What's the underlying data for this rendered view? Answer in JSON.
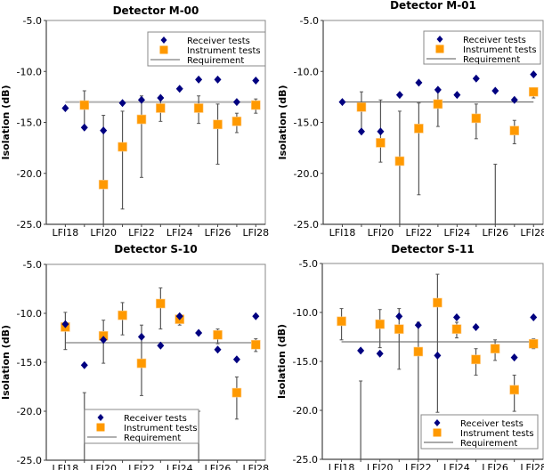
{
  "chart_data": [
    {
      "type": "scatter",
      "title": "Detector M-00",
      "xlabel": "",
      "ylabel": "Isolation (dB)",
      "ylim": [
        -25,
        -5
      ],
      "yticks": [
        "-5.0",
        "-10.0",
        "-15.0",
        "-20.0",
        "-25.0"
      ],
      "ytick_values": [
        -5,
        -10,
        -15,
        -20,
        -25
      ],
      "x": [
        18,
        19,
        20,
        21,
        22,
        23,
        24,
        25,
        26,
        27,
        28
      ],
      "xtick_labels": [
        "LFI18",
        "LFI20",
        "LFI22",
        "LFI24",
        "LFI26",
        "LFI28"
      ],
      "xtick_label_values": [
        18,
        20,
        22,
        24,
        26,
        28
      ],
      "requirement": -13.0,
      "legend_position": "top-right",
      "series": [
        {
          "name": "Receiver tests",
          "marker": "diamond",
          "color": "#000080",
          "values": [
            -13.6,
            -15.5,
            -15.8,
            -13.1,
            -12.8,
            -12.6,
            -11.7,
            -10.8,
            -10.8,
            -13.0,
            -10.9
          ]
        },
        {
          "name": "Instrument tests",
          "marker": "square",
          "color": "#FF9900",
          "values": [
            null,
            -13.3,
            -21.1,
            -17.4,
            -14.7,
            -13.6,
            null,
            -13.6,
            -15.2,
            -14.9,
            -13.3
          ],
          "err_high": [
            null,
            -11.9,
            -14.3,
            -13.9,
            -12.4,
            -12.6,
            null,
            -12.4,
            -13.2,
            -14.1,
            -12.7
          ],
          "err_low": [
            null,
            -15.5,
            -25.0,
            -23.5,
            -20.4,
            -14.9,
            null,
            -15.1,
            -19.1,
            -16.0,
            -14.1
          ]
        }
      ]
    },
    {
      "type": "scatter",
      "title": "Detector M-01",
      "xlabel": "",
      "ylabel": "Isolation (dB)",
      "ylim": [
        -25,
        -5
      ],
      "yticks": [
        "-5.0",
        "-10.0",
        "-15.0",
        "-20.0",
        "-25.0"
      ],
      "ytick_values": [
        -5,
        -10,
        -15,
        -20,
        -25
      ],
      "x": [
        18,
        19,
        20,
        21,
        22,
        23,
        24,
        25,
        26,
        27,
        28
      ],
      "xtick_labels": [
        "LFI18",
        "LFI20",
        "LFI22",
        "LFI24",
        "LFI26",
        "LFI28"
      ],
      "xtick_label_values": [
        18,
        20,
        22,
        24,
        26,
        28
      ],
      "requirement": -13.0,
      "legend_position": "top-right",
      "series": [
        {
          "name": "Receiver tests",
          "marker": "diamond",
          "color": "#000080",
          "values": [
            -13.0,
            -15.9,
            -15.9,
            -12.3,
            -11.1,
            -11.8,
            -12.3,
            -10.7,
            -11.9,
            -12.8,
            -10.3
          ]
        },
        {
          "name": "Instrument tests",
          "marker": "square",
          "color": "#FF9900",
          "values": [
            null,
            -13.5,
            -17.0,
            -18.8,
            -15.6,
            -13.2,
            null,
            -14.6,
            null,
            -15.8,
            -12.0
          ],
          "err_high": [
            null,
            -12.0,
            -12.8,
            -13.9,
            -13.1,
            -12.0,
            null,
            -13.2,
            -19.1,
            -14.8,
            -11.6
          ],
          "err_low": [
            null,
            -15.9,
            -18.9,
            -25.0,
            -22.1,
            -15.4,
            null,
            -16.6,
            -25.0,
            -17.1,
            -12.6
          ]
        }
      ]
    },
    {
      "type": "scatter",
      "title": "Detector S-10",
      "xlabel": "",
      "ylabel": "Isolation (dB)",
      "ylim": [
        -25,
        -5
      ],
      "yticks": [
        "-5.0",
        "-10.0",
        "-15.0",
        "-20.0",
        "-25.0"
      ],
      "ytick_values": [
        -5,
        -10,
        -15,
        -20,
        -25
      ],
      "x": [
        18,
        19,
        20,
        21,
        22,
        23,
        24,
        25,
        26,
        27,
        28
      ],
      "xtick_labels": [
        "LFI18",
        "LFI20",
        "LFI22",
        "LFI24",
        "LFI26",
        "LFI28"
      ],
      "xtick_label_values": [
        18,
        20,
        22,
        24,
        26,
        28
      ],
      "requirement": -13.0,
      "legend_position": "bottom-center",
      "series": [
        {
          "name": "Receiver tests",
          "marker": "diamond",
          "color": "#000080",
          "values": [
            -11.1,
            -15.3,
            -12.7,
            null,
            -12.4,
            -13.3,
            -10.3,
            -12.0,
            -13.7,
            -14.7,
            -10.3
          ]
        },
        {
          "name": "Instrument tests",
          "marker": "square",
          "color": "#FF9900",
          "values": [
            -11.4,
            null,
            -12.3,
            -10.2,
            -15.1,
            -9.0,
            -10.6,
            null,
            -12.2,
            -18.1,
            -13.2
          ],
          "err_high": [
            -9.9,
            -18.1,
            -10.7,
            -8.9,
            -11.2,
            -7.4,
            -10.3,
            -20.0,
            -11.6,
            -16.5,
            -12.6
          ],
          "err_low": [
            -13.7,
            -25.0,
            -15.1,
            -12.2,
            -18.4,
            -11.6,
            -11.2,
            -25.0,
            -13.1,
            -20.8,
            -13.9
          ]
        }
      ]
    },
    {
      "type": "scatter",
      "title": "Detector S-11",
      "xlabel": "",
      "ylabel": "Isolation (dB)",
      "ylim": [
        -25,
        -5
      ],
      "yticks": [
        "-5.0",
        "-10.0",
        "-15.0",
        "-20.0",
        "-25.0"
      ],
      "ytick_values": [
        -5,
        -10,
        -15,
        -20,
        -25
      ],
      "x": [
        18,
        19,
        20,
        21,
        22,
        23,
        24,
        25,
        26,
        27,
        28
      ],
      "xtick_labels": [
        "LFI18",
        "LFI20",
        "LFI22",
        "LFI24",
        "LFI26",
        "LFI28"
      ],
      "xtick_label_values": [
        18,
        20,
        22,
        24,
        26,
        28
      ],
      "requirement": -13.0,
      "legend_position": "bottom-right",
      "series": [
        {
          "name": "Receiver tests",
          "marker": "diamond",
          "color": "#000080",
          "values": [
            null,
            -13.9,
            -14.2,
            -10.4,
            -11.3,
            -14.4,
            -10.5,
            -11.5,
            null,
            -14.6,
            -10.5
          ]
        },
        {
          "name": "Instrument tests",
          "marker": "square",
          "color": "#FF9900",
          "values": [
            -10.9,
            null,
            -11.2,
            -11.7,
            -14.0,
            -9.0,
            -11.7,
            -14.8,
            -13.7,
            -17.9,
            -13.2
          ],
          "err_high": [
            -9.6,
            -17.0,
            -9.7,
            -9.6,
            -11.0,
            -6.1,
            -11.0,
            -13.7,
            -12.8,
            -16.4,
            -12.7
          ],
          "err_low": [
            -12.8,
            -25.0,
            -13.6,
            -15.8,
            -25.0,
            -20.2,
            -12.6,
            -16.4,
            -14.9,
            -20.1,
            -13.7
          ]
        }
      ]
    }
  ],
  "legend": {
    "receiver": "Receiver tests",
    "instrument": "Instrument tests",
    "requirement": "Requirement"
  },
  "colors": {
    "receiver": "#000080",
    "instrument": "#FF9900",
    "requirement_top": "#b0b0b0",
    "requirement_bottom": "#555555",
    "axes": "#555555"
  }
}
